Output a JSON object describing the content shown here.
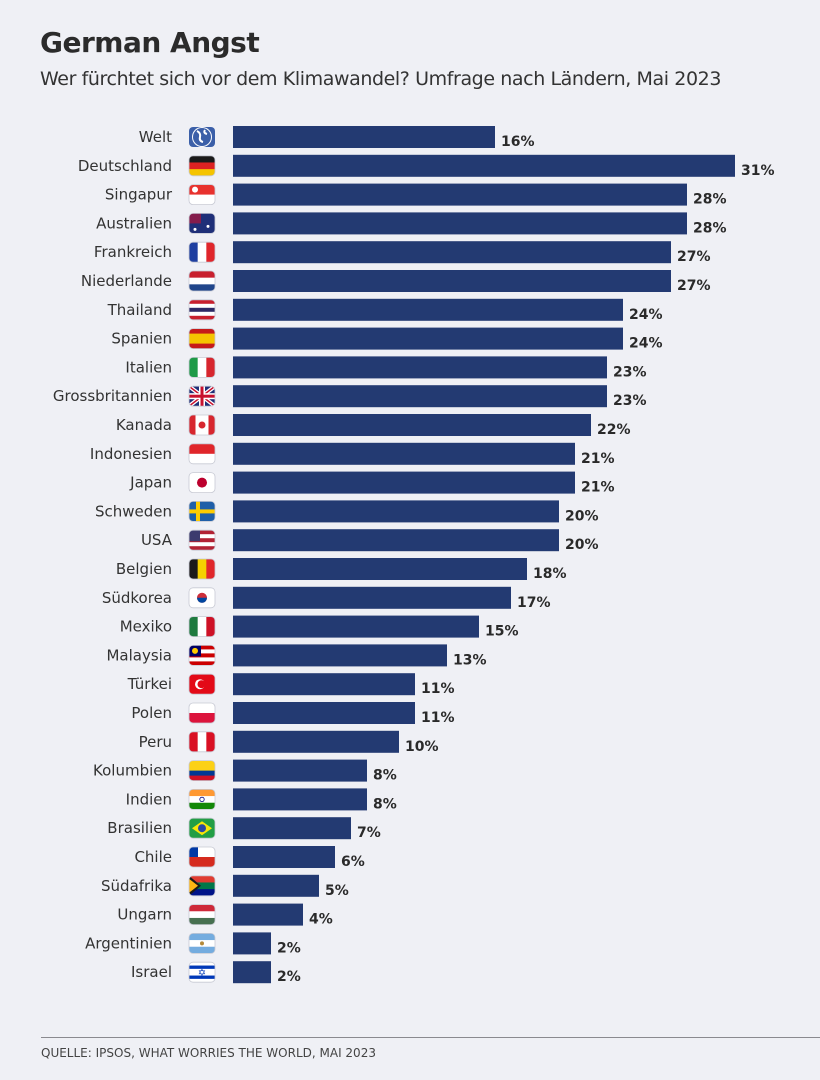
{
  "chart_data": {
    "type": "bar",
    "orientation": "horizontal",
    "title": "German Angst",
    "subtitle": "Wer fürchtet sich vor dem Klimawandel? Umfrage nach Ländern, Mai 2023",
    "xlabel": "",
    "ylabel": "",
    "xlim": [
      0,
      31
    ],
    "grid": false,
    "bar_color": "#233a72",
    "categories": [
      "Welt",
      "Deutschland",
      "Singapur",
      "Australien",
      "Frankreich",
      "Niederlande",
      "Thailand",
      "Spanien",
      "Italien",
      "Grossbritannien",
      "Kanada",
      "Indonesien",
      "Japan",
      "Schweden",
      "USA",
      "Belgien",
      "Südkorea",
      "Mexiko",
      "Malaysia",
      "Türkei",
      "Polen",
      "Peru",
      "Kolumbien",
      "Indien",
      "Brasilien",
      "Chile",
      "Südafrika",
      "Ungarn",
      "Argentinien",
      "Israel"
    ],
    "values": [
      16,
      31,
      28,
      28,
      27,
      27,
      24,
      24,
      23,
      23,
      22,
      21,
      21,
      20,
      20,
      18,
      17,
      15,
      13,
      11,
      11,
      10,
      8,
      8,
      7,
      6,
      5,
      4,
      2,
      2
    ],
    "value_labels": [
      "16%",
      "31%",
      "28%",
      "28%",
      "27%",
      "27%",
      "24%",
      "24%",
      "23%",
      "23%",
      "22%",
      "21%",
      "21%",
      "20%",
      "20%",
      "18%",
      "17%",
      "15%",
      "13%",
      "11%",
      "11%",
      "10%",
      "8%",
      "8%",
      "7%",
      "6%",
      "5%",
      "4%",
      "2%",
      "2%"
    ],
    "flags": [
      {
        "icon": "globe-icon",
        "dir": "h",
        "colors": [
          "#3b5fa8"
        ]
      },
      {
        "icon": "flag-germany-icon",
        "dir": "h",
        "colors": [
          "#1a1a1a",
          "#dd2222",
          "#f5c400"
        ]
      },
      {
        "icon": "flag-singapore-icon",
        "dir": "h",
        "colors": [
          "#e8322e",
          "#ffffff"
        ]
      },
      {
        "icon": "flag-australia-icon",
        "dir": "h",
        "colors": [
          "#1f2f78"
        ]
      },
      {
        "icon": "flag-france-icon",
        "dir": "v",
        "colors": [
          "#1f3fa0",
          "#ffffff",
          "#e0262b"
        ]
      },
      {
        "icon": "flag-netherlands-icon",
        "dir": "h",
        "colors": [
          "#c8202e",
          "#ffffff",
          "#21468b"
        ]
      },
      {
        "icon": "flag-thailand-icon",
        "dir": "h",
        "colors": [
          "#c8202e",
          "#ffffff",
          "#2d2a66",
          "#ffffff",
          "#c8202e"
        ]
      },
      {
        "icon": "flag-spain-icon",
        "dir": "h",
        "colors": [
          "#c61a1a",
          "#f5c400",
          "#f5c400",
          "#c61a1a"
        ]
      },
      {
        "icon": "flag-italy-icon",
        "dir": "v",
        "colors": [
          "#1e9a47",
          "#ffffff",
          "#d7262e"
        ]
      },
      {
        "icon": "flag-uk-icon",
        "dir": "h",
        "colors": [
          "#1f2f78"
        ]
      },
      {
        "icon": "flag-canada-icon",
        "dir": "v",
        "colors": [
          "#d7262e",
          "#ffffff",
          "#ffffff",
          "#d7262e"
        ]
      },
      {
        "icon": "flag-indonesia-icon",
        "dir": "h",
        "colors": [
          "#e0262b",
          "#ffffff"
        ]
      },
      {
        "icon": "flag-japan-icon",
        "dir": "h",
        "colors": [
          "#ffffff"
        ]
      },
      {
        "icon": "flag-sweden-icon",
        "dir": "h",
        "colors": [
          "#1f5fa8"
        ]
      },
      {
        "icon": "flag-usa-icon",
        "dir": "h",
        "colors": [
          "#b22234",
          "#ffffff",
          "#b22234",
          "#ffffff",
          "#b22234"
        ]
      },
      {
        "icon": "flag-belgium-icon",
        "dir": "v",
        "colors": [
          "#1a1a1a",
          "#f5d000",
          "#e0262b"
        ]
      },
      {
        "icon": "flag-south-korea-icon",
        "dir": "h",
        "colors": [
          "#ffffff"
        ]
      },
      {
        "icon": "flag-mexico-icon",
        "dir": "v",
        "colors": [
          "#1e7a3f",
          "#ffffff",
          "#ce1126"
        ]
      },
      {
        "icon": "flag-malaysia-icon",
        "dir": "h",
        "colors": [
          "#cc0001",
          "#ffffff",
          "#cc0001",
          "#ffffff",
          "#cc0001"
        ]
      },
      {
        "icon": "flag-turkey-icon",
        "dir": "h",
        "colors": [
          "#e30a17"
        ]
      },
      {
        "icon": "flag-poland-icon",
        "dir": "h",
        "colors": [
          "#ffffff",
          "#dc143c"
        ]
      },
      {
        "icon": "flag-peru-icon",
        "dir": "v",
        "colors": [
          "#d91023",
          "#ffffff",
          "#d91023"
        ]
      },
      {
        "icon": "flag-colombia-icon",
        "dir": "h",
        "colors": [
          "#fcd116",
          "#fcd116",
          "#003893",
          "#ce1126"
        ]
      },
      {
        "icon": "flag-india-icon",
        "dir": "h",
        "colors": [
          "#ff9933",
          "#ffffff",
          "#138808"
        ]
      },
      {
        "icon": "flag-brazil-icon",
        "dir": "h",
        "colors": [
          "#229e45"
        ]
      },
      {
        "icon": "flag-chile-icon",
        "dir": "h",
        "colors": [
          "#ffffff",
          "#d52b1e"
        ]
      },
      {
        "icon": "flag-south-africa-icon",
        "dir": "h",
        "colors": [
          "#e03c31",
          "#007749",
          "#001489"
        ]
      },
      {
        "icon": "flag-hungary-icon",
        "dir": "h",
        "colors": [
          "#ce2939",
          "#ffffff",
          "#477050"
        ]
      },
      {
        "icon": "flag-argentina-icon",
        "dir": "h",
        "colors": [
          "#74acdf",
          "#ffffff",
          "#74acdf"
        ]
      },
      {
        "icon": "flag-israel-icon",
        "dir": "h",
        "colors": [
          "#ffffff",
          "#0038b8",
          "#ffffff",
          "#ffffff",
          "#0038b8",
          "#ffffff"
        ]
      }
    ]
  },
  "footer": {
    "source": "QUELLE: IPSOS, WHAT WORRIES THE WORLD, MAI 2023"
  }
}
